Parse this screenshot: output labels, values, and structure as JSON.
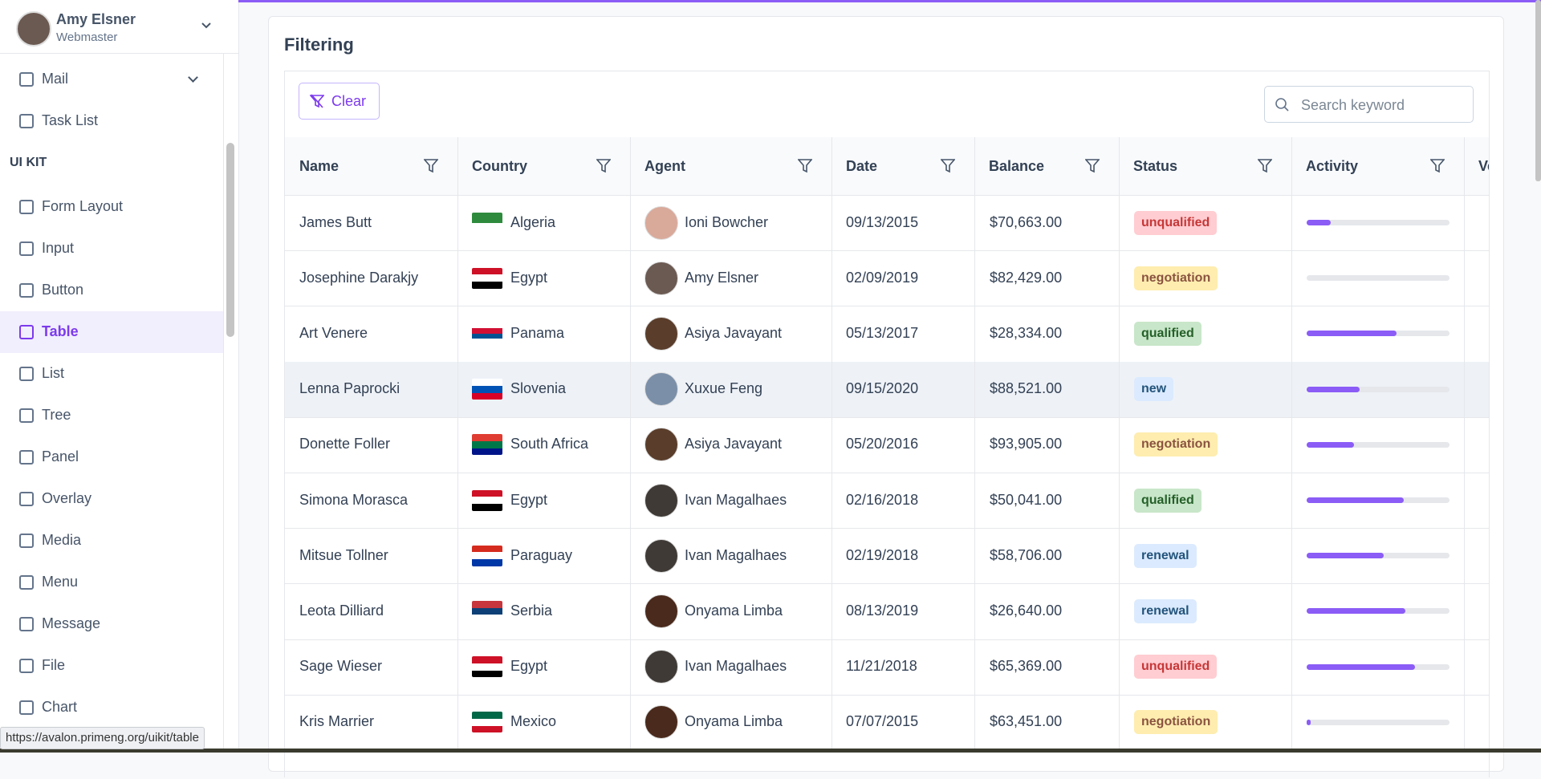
{
  "user": {
    "name": "Amy Elsner",
    "role": "Webmaster"
  },
  "sidebar": {
    "items_top": [
      "Mail",
      "Task List"
    ],
    "section": "UI KIT",
    "items": [
      {
        "label": "Form Layout"
      },
      {
        "label": "Input"
      },
      {
        "label": "Button"
      },
      {
        "label": "Table",
        "active": true
      },
      {
        "label": "List"
      },
      {
        "label": "Tree"
      },
      {
        "label": "Panel"
      },
      {
        "label": "Overlay"
      },
      {
        "label": "Media"
      },
      {
        "label": "Menu"
      },
      {
        "label": "Message"
      },
      {
        "label": "File"
      },
      {
        "label": "Chart"
      }
    ]
  },
  "card": {
    "title": "Filtering",
    "clear": "Clear",
    "search_placeholder": "Search keyword"
  },
  "table": {
    "columns": [
      "Name",
      "Country",
      "Agent",
      "Date",
      "Balance",
      "Status",
      "Activity",
      "Verified"
    ],
    "activity_range": [
      0,
      100
    ],
    "rows": [
      {
        "name": "James Butt",
        "country": "Algeria",
        "flag": [
          "#2e8b3d",
          "#ffffff"
        ],
        "agent": "Ioni Bowcher",
        "avatar": "#d9a99a",
        "date": "09/13/2015",
        "balance": "$70,663.00",
        "status": "unqualified",
        "activity": 17
      },
      {
        "name": "Josephine Darakjy",
        "country": "Egypt",
        "flag": [
          "#ce1126",
          "#ffffff",
          "#000000"
        ],
        "agent": "Amy Elsner",
        "avatar": "#6b5a52",
        "date": "02/09/2019",
        "balance": "$82,429.00",
        "status": "negotiation",
        "activity": 0
      },
      {
        "name": "Art Venere",
        "country": "Panama",
        "flag": [
          "#ffffff",
          "#d21034",
          "#005293",
          "#ffffff"
        ],
        "agent": "Asiya Javayant",
        "avatar": "#5a3d2b",
        "date": "05/13/2017",
        "balance": "$28,334.00",
        "status": "qualified",
        "activity": 63
      },
      {
        "name": "Lenna Paprocki",
        "country": "Slovenia",
        "flag": [
          "#ffffff",
          "#0052b4",
          "#d80027"
        ],
        "agent": "Xuxue Feng",
        "avatar": "#7b8fa8",
        "date": "09/15/2020",
        "balance": "$88,521.00",
        "status": "new",
        "activity": 37,
        "hover": true
      },
      {
        "name": "Donette Foller",
        "country": "South Africa",
        "flag": [
          "#e03c31",
          "#007749",
          "#001489"
        ],
        "agent": "Asiya Javayant",
        "avatar": "#5a3d2b",
        "date": "05/20/2016",
        "balance": "$93,905.00",
        "status": "negotiation",
        "activity": 33
      },
      {
        "name": "Simona Morasca",
        "country": "Egypt",
        "flag": [
          "#ce1126",
          "#ffffff",
          "#000000"
        ],
        "agent": "Ivan Magalhaes",
        "avatar": "#3f3a36",
        "date": "02/16/2018",
        "balance": "$50,041.00",
        "status": "qualified",
        "activity": 68
      },
      {
        "name": "Mitsue Tollner",
        "country": "Paraguay",
        "flag": [
          "#d52b1e",
          "#ffffff",
          "#0038a8"
        ],
        "agent": "Ivan Magalhaes",
        "avatar": "#3f3a36",
        "date": "02/19/2018",
        "balance": "$58,706.00",
        "status": "renewal",
        "activity": 54
      },
      {
        "name": "Leota Dilliard",
        "country": "Serbia",
        "flag": [
          "#c6363c",
          "#0c4076",
          "#ffffff"
        ],
        "agent": "Onyama Limba",
        "avatar": "#4a2a1c",
        "date": "08/13/2019",
        "balance": "$26,640.00",
        "status": "renewal",
        "activity": 69
      },
      {
        "name": "Sage Wieser",
        "country": "Egypt",
        "flag": [
          "#ce1126",
          "#ffffff",
          "#000000"
        ],
        "agent": "Ivan Magalhaes",
        "avatar": "#3f3a36",
        "date": "11/21/2018",
        "balance": "$65,369.00",
        "status": "unqualified",
        "activity": 76
      },
      {
        "name": "Kris Marrier",
        "country": "Mexico",
        "flag": [
          "#006847",
          "#ffffff",
          "#ce1126"
        ],
        "agent": "Onyama Limba",
        "avatar": "#4a2a1c",
        "date": "07/07/2015",
        "balance": "$63,451.00",
        "status": "negotiation",
        "activity": 3
      }
    ]
  },
  "status_url": "https://avalon.primeng.org/uikit/table"
}
